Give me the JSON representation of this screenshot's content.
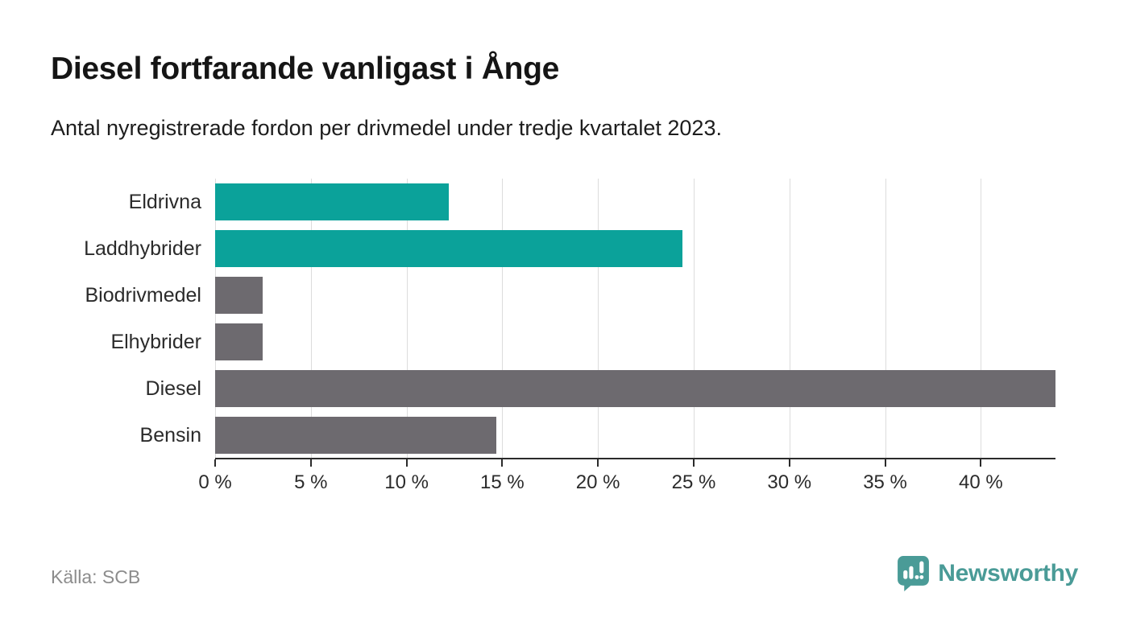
{
  "header": {
    "title": "Diesel fortfarande vanligast i Ånge",
    "subtitle": "Antal nyregistrerade fordon per drivmedel under tredje kvartalet 2023."
  },
  "chart_data": {
    "type": "bar",
    "orientation": "horizontal",
    "title": "Diesel fortfarande vanligast i Ånge",
    "subtitle": "Antal nyregistrerade fordon per drivmedel under tredje kvartalet 2023.",
    "categories": [
      "Eldrivna",
      "Laddhybrider",
      "Biodrivmedel",
      "Elhybrider",
      "Diesel",
      "Bensin"
    ],
    "values": [
      12.2,
      24.4,
      2.5,
      2.5,
      43.9,
      14.7
    ],
    "unit": "%",
    "bar_colors": [
      "#0ba29a",
      "#0ba29a",
      "#6d6a6f",
      "#6d6a6f",
      "#6d6a6f",
      "#6d6a6f"
    ],
    "xlabel": "",
    "ylabel": "",
    "xlim": [
      0,
      43.9
    ],
    "x_ticks": [
      0,
      5,
      10,
      15,
      20,
      25,
      30,
      35,
      40
    ],
    "x_tick_labels": [
      "0 %",
      "5 %",
      "10 %",
      "15 %",
      "20 %",
      "25 %",
      "30 %",
      "35 %",
      "40 %"
    ],
    "grid": "vertical",
    "legend": "none"
  },
  "footer": {
    "source": "Källa: SCB",
    "brand": "Newsworthy"
  },
  "icons": {
    "brand_icon": "newsworthy-speech-bubble-bar-chart-icon"
  },
  "colors": {
    "accent_teal": "#0ba29a",
    "neutral_gray": "#6d6a6f",
    "logo_teal": "#4a9b97",
    "gridline": "#dcdcdc",
    "axis": "#2b2b2b",
    "text_dark": "#1a1a1a",
    "text_muted": "#8c8c8c",
    "background": "#ffffff"
  }
}
